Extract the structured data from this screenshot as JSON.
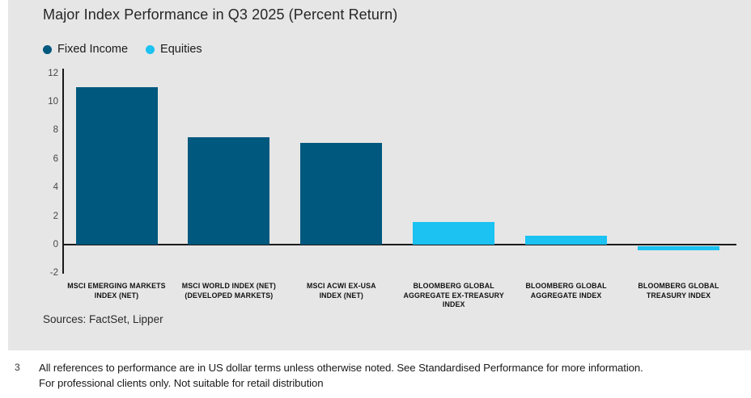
{
  "chart_data": {
    "type": "bar",
    "title": "Major Index Performance in Q3 2025 (Percent Return)",
    "categories": [
      "MSCI EMERGING MARKETS INDEX (NET)",
      "MSCI WORLD INDEX (NET) (DEVELOPED MARKETS)",
      "MSCI ACWI EX-USA INDEX (NET)",
      "BLOOMBERG GLOBAL AGGREGATE EX-TREASURY INDEX",
      "BLOOMBERG GLOBAL AGGREGATE INDEX",
      "BLOOMBERG GLOBAL TREASURY INDEX"
    ],
    "category_lines": [
      [
        "MSCI EMERGING MARKETS",
        "INDEX (NET)"
      ],
      [
        "MSCI WORLD INDEX (NET)",
        "(DEVELOPED MARKETS)"
      ],
      [
        "MSCI ACWI EX-USA",
        "INDEX (NET)"
      ],
      [
        "BLOOMBERG GLOBAL",
        "AGGREGATE EX-TREASURY",
        "INDEX"
      ],
      [
        "BLOOMBERG GLOBAL",
        "AGGREGATE INDEX"
      ],
      [
        "BLOOMBERG GLOBAL",
        "TREASURY INDEX"
      ]
    ],
    "values": [
      11.0,
      7.5,
      7.1,
      1.6,
      0.6,
      -0.3
    ],
    "bar_series": [
      "fixed_income",
      "fixed_income",
      "fixed_income",
      "equities",
      "equities",
      "equities"
    ],
    "colors": {
      "fixed_income": "#00587e",
      "equities": "#1bc2f2"
    },
    "legend": [
      {
        "label": "Fixed Income",
        "color": "#00587e"
      },
      {
        "label": "Equities",
        "color": "#1bc2f2"
      }
    ],
    "legend_position": "top-left",
    "grid": false,
    "ylim": [
      -2,
      12
    ],
    "yticks": [
      12,
      10,
      8,
      6,
      4,
      2,
      0,
      -2
    ],
    "xlabel": "",
    "ylabel": "",
    "sources": "Sources: FactSet, Lipper",
    "background_color": "#e6e6e6"
  },
  "footer": {
    "number": "3",
    "line1": "All references to performance are in US dollar terms unless otherwise noted. See Standardised Performance for more information.",
    "line2": "For professional clients only. Not suitable for retail distribution"
  }
}
